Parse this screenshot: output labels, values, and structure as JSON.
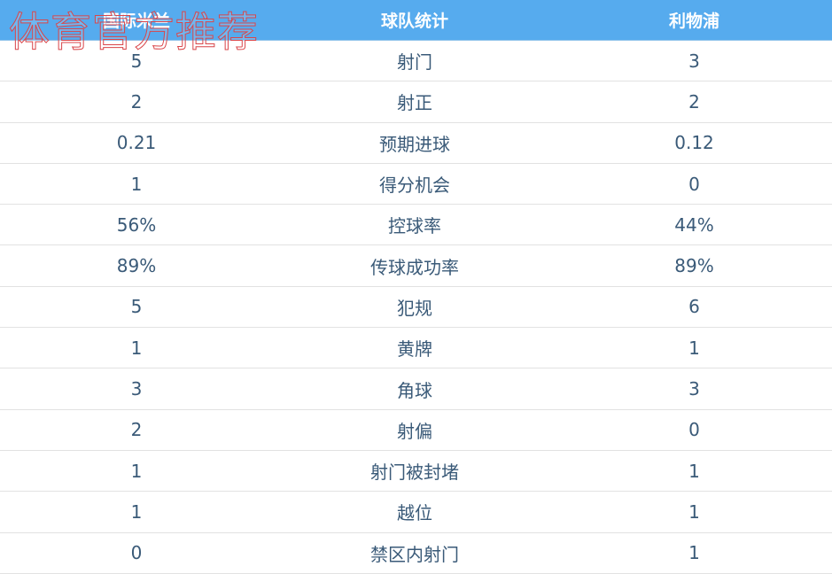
{
  "header": {
    "home": "国际米兰",
    "stat": "球队统计",
    "away": "利物浦"
  },
  "rows": [
    {
      "home": "5",
      "stat": "射门",
      "away": "3"
    },
    {
      "home": "2",
      "stat": "射正",
      "away": "2"
    },
    {
      "home": "0.21",
      "stat": "预期进球",
      "away": "0.12"
    },
    {
      "home": "1",
      "stat": "得分机会",
      "away": "0"
    },
    {
      "home": "56%",
      "stat": "控球率",
      "away": "44%"
    },
    {
      "home": "89%",
      "stat": "传球成功率",
      "away": "89%"
    },
    {
      "home": "5",
      "stat": "犯规",
      "away": "6"
    },
    {
      "home": "1",
      "stat": "黄牌",
      "away": "1"
    },
    {
      "home": "3",
      "stat": "角球",
      "away": "3"
    },
    {
      "home": "2",
      "stat": "射偏",
      "away": "0"
    },
    {
      "home": "1",
      "stat": "射门被封堵",
      "away": "1"
    },
    {
      "home": "1",
      "stat": "越位",
      "away": "1"
    },
    {
      "home": "0",
      "stat": "禁区内射门",
      "away": "1"
    }
  ],
  "watermark": "体育官方推荐",
  "colors": {
    "header": "#56abee",
    "text": "#3a5a78",
    "watermark": "#d9464a"
  }
}
